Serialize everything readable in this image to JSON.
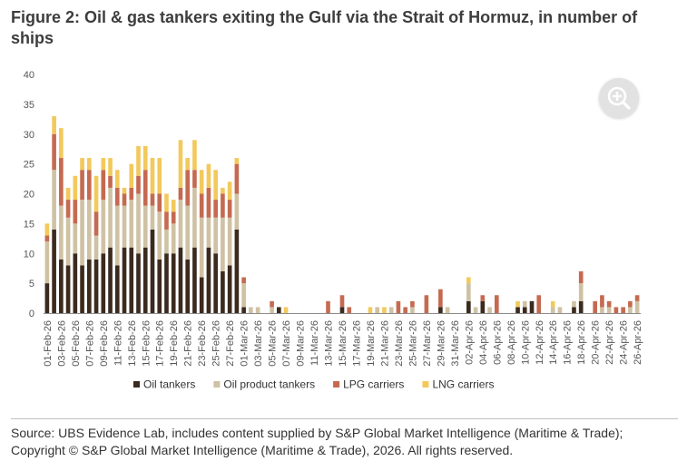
{
  "figure": {
    "title": "Figure 2: Oil & gas tankers exiting the Gulf via the Strait of Hormuz, in number of ships",
    "source": "Source: UBS Evidence Lab, includes content supplied by S&P Global Market Intelligence (Maritime & Trade); Copyright © S&P Global Market Intelligence (Maritime & Trade), 2026. All rights reserved."
  },
  "zoom_button": {
    "icon": "zoom-in-icon"
  },
  "chart_data": {
    "type": "bar",
    "stacked": true,
    "title": "Figure 2: Oil & gas tankers exiting the Gulf via the Strait of Hormuz, in number of ships",
    "xlabel": "",
    "ylabel": "",
    "ylim": [
      0,
      40
    ],
    "yticks": [
      0,
      5,
      10,
      15,
      20,
      25,
      30,
      35,
      40
    ],
    "grid": false,
    "legend_position": "bottom",
    "x_tick_labels": [
      "01-Feb-26",
      "03-Feb-26",
      "05-Feb-26",
      "07-Feb-26",
      "09-Feb-26",
      "11-Feb-26",
      "13-Feb-26",
      "15-Feb-26",
      "17-Feb-26",
      "19-Feb-26",
      "21-Feb-26",
      "23-Feb-26",
      "25-Feb-26",
      "27-Feb-26",
      "01-Mar-26",
      "03-Mar-26",
      "05-Mar-26",
      "07-Mar-26",
      "09-Mar-26",
      "11-Mar-26",
      "13-Mar-26",
      "15-Mar-26",
      "17-Mar-26",
      "19-Mar-26",
      "21-Mar-26",
      "23-Mar-26",
      "25-Mar-26",
      "27-Mar-26",
      "29-Mar-26",
      "31-Mar-26",
      "02-Apr-26",
      "04-Apr-26",
      "06-Apr-26",
      "08-Apr-26",
      "10-Apr-26",
      "12-Apr-26",
      "14-Apr-26",
      "16-Apr-26",
      "18-Apr-26",
      "20-Apr-26",
      "22-Apr-26",
      "24-Apr-26",
      "26-Apr-26"
    ],
    "categories": [
      "01-Feb-26",
      "02-Feb-26",
      "03-Feb-26",
      "04-Feb-26",
      "05-Feb-26",
      "06-Feb-26",
      "07-Feb-26",
      "08-Feb-26",
      "09-Feb-26",
      "10-Feb-26",
      "11-Feb-26",
      "12-Feb-26",
      "13-Feb-26",
      "14-Feb-26",
      "15-Feb-26",
      "16-Feb-26",
      "17-Feb-26",
      "18-Feb-26",
      "19-Feb-26",
      "20-Feb-26",
      "21-Feb-26",
      "22-Feb-26",
      "23-Feb-26",
      "24-Feb-26",
      "25-Feb-26",
      "26-Feb-26",
      "27-Feb-26",
      "28-Feb-26",
      "01-Mar-26",
      "02-Mar-26",
      "03-Mar-26",
      "04-Mar-26",
      "05-Mar-26",
      "06-Mar-26",
      "07-Mar-26",
      "08-Mar-26",
      "09-Mar-26",
      "10-Mar-26",
      "11-Mar-26",
      "12-Mar-26",
      "13-Mar-26",
      "14-Mar-26",
      "15-Mar-26",
      "16-Mar-26",
      "17-Mar-26",
      "18-Mar-26",
      "19-Mar-26",
      "20-Mar-26",
      "21-Mar-26",
      "22-Mar-26",
      "23-Mar-26",
      "24-Mar-26",
      "25-Mar-26",
      "26-Mar-26",
      "27-Mar-26",
      "28-Mar-26",
      "29-Mar-26",
      "30-Mar-26",
      "31-Mar-26",
      "01-Apr-26",
      "02-Apr-26",
      "03-Apr-26",
      "04-Apr-26",
      "05-Apr-26",
      "06-Apr-26",
      "07-Apr-26",
      "08-Apr-26",
      "09-Apr-26",
      "10-Apr-26",
      "11-Apr-26",
      "12-Apr-26",
      "13-Apr-26",
      "14-Apr-26",
      "15-Apr-26",
      "16-Apr-26",
      "17-Apr-26",
      "18-Apr-26",
      "19-Apr-26",
      "20-Apr-26",
      "21-Apr-26",
      "22-Apr-26",
      "23-Apr-26",
      "24-Apr-26",
      "25-Apr-26",
      "26-Apr-26"
    ],
    "series": [
      {
        "name": "Oil tankers",
        "color": "#3b2a1e",
        "values": [
          5,
          14,
          9,
          8,
          10,
          8,
          9,
          9,
          10,
          11,
          8,
          11,
          11,
          10,
          11,
          14,
          9,
          10,
          10,
          11,
          9,
          11,
          6,
          11,
          10,
          7,
          8,
          14,
          1,
          0,
          0,
          0,
          0,
          1,
          0,
          0,
          0,
          0,
          0,
          0,
          0,
          0,
          1,
          0,
          0,
          0,
          0,
          0,
          0,
          0,
          0,
          0,
          0,
          0,
          0,
          0,
          1,
          0,
          0,
          0,
          2,
          0,
          2,
          0,
          0,
          0,
          0,
          1,
          1,
          2,
          0,
          0,
          0,
          0,
          0,
          1,
          2,
          0,
          0,
          0,
          0,
          0,
          0,
          0,
          0
        ]
      },
      {
        "name": "Oil product tankers",
        "color": "#cfc2a4",
        "values": [
          7,
          10,
          9,
          8,
          5,
          11,
          10,
          4,
          9,
          10,
          10,
          7,
          8,
          10,
          7,
          4,
          8,
          4,
          5,
          8,
          9,
          10,
          10,
          5,
          6,
          9,
          8,
          6,
          4,
          1,
          1,
          0,
          1,
          0,
          0,
          0,
          0,
          0,
          0,
          0,
          0,
          0,
          0,
          0,
          0,
          0,
          0,
          1,
          0,
          1,
          0,
          0,
          1,
          0,
          0,
          0,
          0,
          1,
          0,
          0,
          3,
          1,
          0,
          1,
          0,
          0,
          0,
          0,
          1,
          0,
          0,
          0,
          1,
          1,
          0,
          1,
          3,
          0,
          0,
          1,
          1,
          0,
          0,
          1,
          2
        ]
      },
      {
        "name": "LPG carriers",
        "color": "#c56a51",
        "values": [
          1,
          6,
          8,
          3,
          4,
          5,
          5,
          4,
          5,
          2,
          3,
          2,
          2,
          3,
          6,
          2,
          3,
          3,
          2,
          2,
          6,
          3,
          4,
          5,
          3,
          4,
          3,
          5,
          1,
          0,
          0,
          0,
          1,
          0,
          0,
          0,
          0,
          0,
          0,
          0,
          2,
          0,
          2,
          1,
          0,
          0,
          0,
          0,
          0,
          0,
          2,
          1,
          1,
          0,
          3,
          0,
          3,
          0,
          0,
          0,
          0,
          0,
          1,
          0,
          3,
          0,
          0,
          0,
          0,
          0,
          3,
          0,
          0,
          0,
          0,
          0,
          2,
          0,
          2,
          2,
          1,
          1,
          1,
          1,
          1
        ]
      },
      {
        "name": "LNG carriers",
        "color": "#f2c95c",
        "values": [
          2,
          3,
          5,
          2,
          4,
          2,
          2,
          6,
          2,
          3,
          3,
          1,
          4,
          5,
          4,
          6,
          6,
          3,
          2,
          8,
          2,
          5,
          4,
          4,
          5,
          1,
          3,
          1,
          0,
          0,
          0,
          0,
          0,
          0,
          1,
          0,
          0,
          0,
          0,
          0,
          0,
          0,
          0,
          0,
          0,
          0,
          1,
          0,
          1,
          0,
          0,
          0,
          0,
          0,
          0,
          0,
          0,
          0,
          0,
          0,
          1,
          0,
          0,
          0,
          0,
          0,
          0,
          1,
          0,
          0,
          0,
          0,
          1,
          0,
          0,
          0,
          0,
          0,
          0,
          0,
          0,
          0,
          0,
          0,
          0
        ]
      }
    ]
  }
}
